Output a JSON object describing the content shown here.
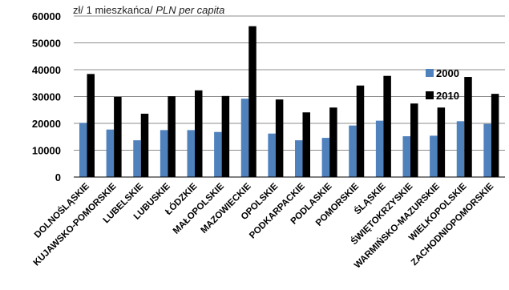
{
  "chart_data": {
    "type": "bar",
    "title": "",
    "unit_label": {
      "plain": "zł/ 1 mieszkańca/ ",
      "italic": "PLN per capita"
    },
    "xlabel": "",
    "ylabel": "",
    "ylim": [
      0,
      60000
    ],
    "yticks": [
      "0",
      "10000",
      "20000",
      "30000",
      "40000",
      "50000",
      "60000"
    ],
    "ytick_values": [
      0,
      10000,
      20000,
      30000,
      40000,
      50000,
      60000
    ],
    "grid": true,
    "legend_position": "right",
    "categories": [
      "DOLNOŚLĄSKIE",
      "KUJAWSKO-POMORSKIE",
      "LUBELSKIE",
      "LUBUSKIE",
      "ŁÓDZKIE",
      "MAŁOPOLSKIE",
      "MAZOWIECKIE",
      "OPOLSKIE",
      "PODKARPACKIE",
      "PODLASKIE",
      "POMORSKIE",
      "ŚLĄSKIE",
      "ŚWIĘTOKRZYSKIE",
      "WARMIŃSKO-MAZURSKIE",
      "WIELKOPOLSKIE",
      "ZACHODNIOPOMORSKIE"
    ],
    "series": [
      {
        "name": "2000",
        "color": "#4f81bd",
        "values": [
          20200,
          17700,
          13700,
          17500,
          17500,
          16800,
          29200,
          16200,
          13700,
          14600,
          19200,
          21000,
          15200,
          15400,
          20800,
          19800
        ]
      },
      {
        "name": "2010",
        "color": "#000000",
        "values": [
          38400,
          29900,
          23600,
          30100,
          32300,
          30200,
          56200,
          28900,
          24100,
          25900,
          34100,
          37700,
          27400,
          25900,
          37300,
          31000
        ]
      }
    ]
  }
}
